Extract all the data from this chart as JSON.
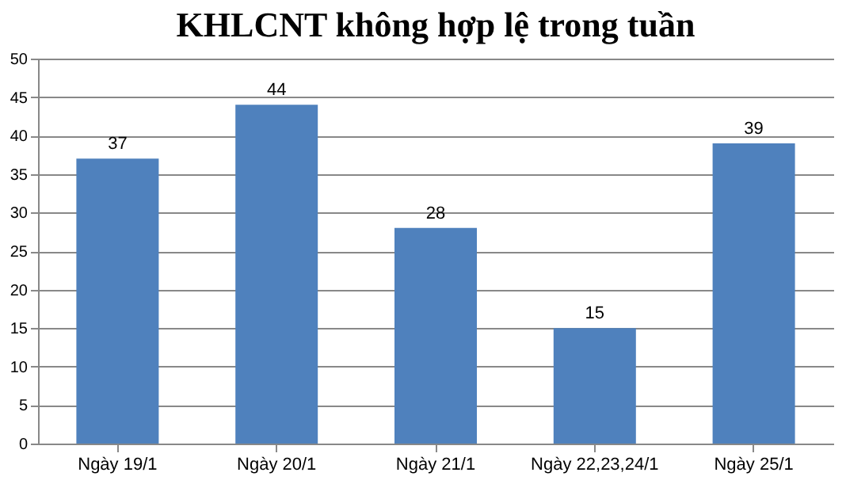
{
  "chart_data": {
    "type": "bar",
    "title": "KHLCNT không hợp lệ trong tuần",
    "categories": [
      "Ngày 19/1",
      "Ngày 20/1",
      "Ngày 21/1",
      "Ngày 22,23,24/1",
      "Ngày 25/1"
    ],
    "values": [
      37,
      44,
      28,
      15,
      39
    ],
    "color": "#4f81bd",
    "ylim": [
      0,
      50
    ],
    "yticks": [
      0,
      5,
      10,
      15,
      20,
      25,
      30,
      35,
      40,
      45,
      50
    ],
    "grid": "y",
    "data_labels": true
  }
}
